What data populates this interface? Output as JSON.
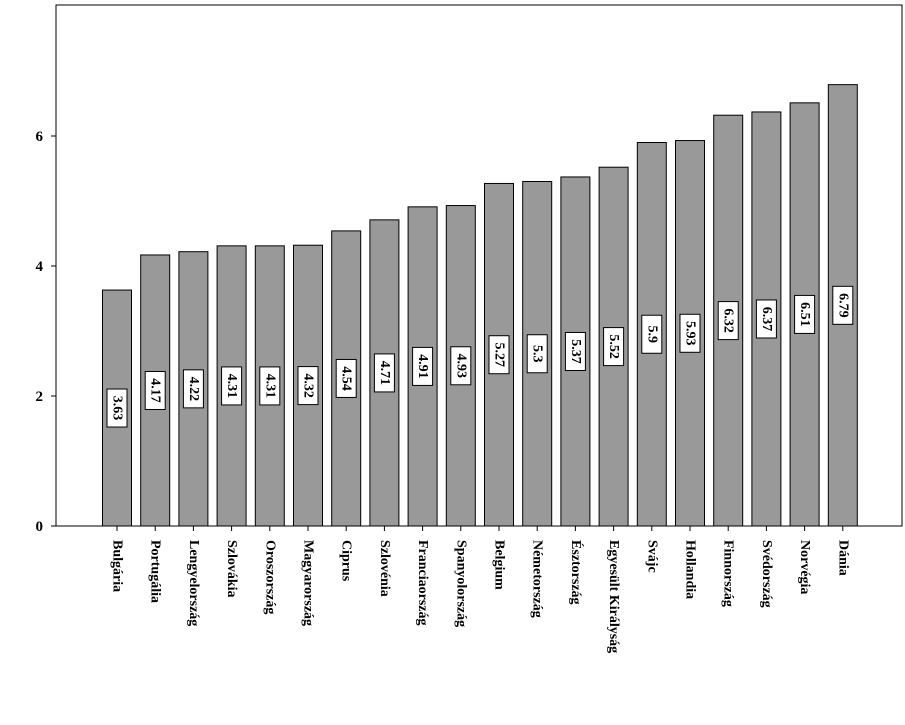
{
  "chart_data": {
    "type": "bar",
    "categories": [
      "Bulgária",
      "Portugália",
      "Lengyelország",
      "Szlovákia",
      "Oroszország",
      "Magyarország",
      "Ciprus",
      "Szlovénia",
      "Franciaország",
      "Spanyolország",
      "Belgium",
      "Németország",
      "Észtország",
      "Egyesült Királyság",
      "Svájc",
      "Hollandia",
      "Finnország",
      "Svédország",
      "Norvégia",
      "Dánia"
    ],
    "values": [
      3.63,
      4.17,
      4.22,
      4.31,
      4.31,
      4.32,
      4.54,
      4.71,
      4.91,
      4.93,
      5.27,
      5.3,
      5.37,
      5.52,
      5.9,
      5.93,
      6.32,
      6.37,
      6.51,
      6.79
    ],
    "data_labels": [
      "3.63",
      "4.17",
      "4.22",
      "4.31",
      "4.31",
      "4.32",
      "4.54",
      "4.71",
      "4.91",
      "4.93",
      "5.27",
      "5.3",
      "5.37",
      "5.52",
      "5.9",
      "5.93",
      "6.32",
      "6.37",
      "6.51",
      "6.79"
    ],
    "y_ticks": [
      0,
      2,
      4,
      6
    ],
    "y_tick_labels": [
      "0",
      "2",
      "4",
      "6"
    ],
    "ylim": [
      0,
      7.7
    ],
    "title": "",
    "xlabel": "",
    "ylabel": "",
    "grid": false,
    "legend": "none",
    "colors": {
      "bar_fill": "#999999",
      "bar_stroke": "#000000",
      "label_box_fill": "#ffffff",
      "axis": "#000000"
    }
  }
}
